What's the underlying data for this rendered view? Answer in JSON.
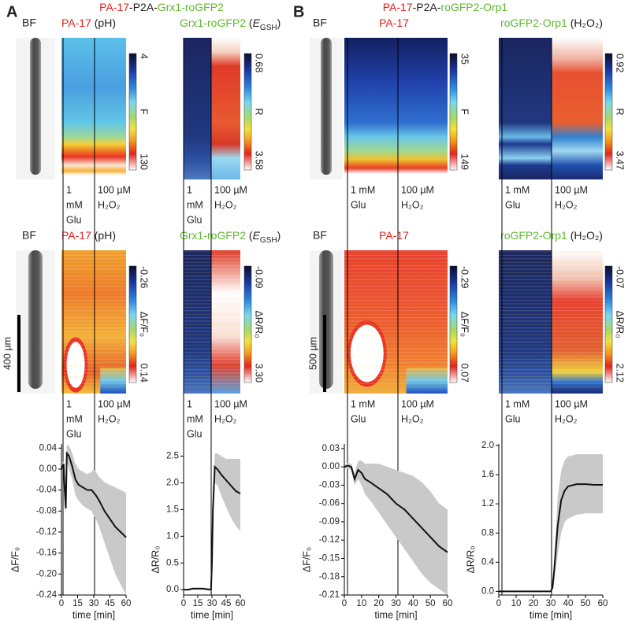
{
  "panels": [
    {
      "letter": "A",
      "construct": [
        {
          "text": "PA-17",
          "color": "#e3201b"
        },
        {
          "text": "-P2A-",
          "color": "#231f20"
        },
        {
          "text": "Grx1-roGFP2",
          "color": "#5fb82f"
        }
      ],
      "rows": [
        {
          "bf": "BF",
          "titles": [
            [
              {
                "text": "PA-17",
                "color": "#e3201b"
              },
              {
                "text": " (pH)",
                "color": "#231f20"
              }
            ],
            [
              {
                "text": "Grx1-roGFP2",
                "color": "#5fb82f"
              },
              {
                "text": " (",
                "color": "#231f20"
              },
              {
                "text": "E",
                "color": "#231f20",
                "style": "italic"
              },
              {
                "text": "GSH",
                "color": "#231f20",
                "style": "sub"
              },
              {
                "text": ")",
                "color": "#231f20"
              }
            ]
          ],
          "colorbars": [
            {
              "top": "4",
              "label": "F",
              "bottom": "130"
            },
            {
              "top": "0.68",
              "label": "R",
              "bottom": "3.58"
            }
          ]
        },
        {
          "bf": "BF",
          "titles": [
            [
              {
                "text": "PA-17",
                "color": "#e3201b"
              },
              {
                "text": " (pH)",
                "color": "#231f20"
              }
            ],
            [
              {
                "text": "Grx1-roGFP2",
                "color": "#5fb82f"
              },
              {
                "text": " (",
                "color": "#231f20"
              },
              {
                "text": "E",
                "color": "#231f20",
                "style": "italic"
              },
              {
                "text": "GSH",
                "color": "#231f20",
                "style": "sub"
              },
              {
                "text": ")",
                "color": "#231f20"
              }
            ]
          ],
          "colorbars": [
            {
              "top": "-0.26",
              "label": "ΔF/F₀",
              "bottom": "0.14"
            },
            {
              "top": "-0.09",
              "label": "ΔR/R₀",
              "bottom": "3.30"
            }
          ]
        }
      ],
      "treatments": [
        [
          "1",
          "mM",
          "Glu"
        ],
        [
          "100 µM",
          "H₂O₂"
        ]
      ],
      "scale_bar": "400 µm"
    },
    {
      "letter": "B",
      "construct": [
        {
          "text": "PA-17",
          "color": "#e3201b"
        },
        {
          "text": "-P2A-",
          "color": "#231f20"
        },
        {
          "text": "roGFP2-Orp1",
          "color": "#5fb82f"
        }
      ],
      "rows": [
        {
          "bf": "BF",
          "titles": [
            [
              {
                "text": "PA-17",
                "color": "#e3201b"
              }
            ],
            [
              {
                "text": "roGFP2-Orp1",
                "color": "#5fb82f"
              },
              {
                "text": " (H₂O₂)",
                "color": "#231f20"
              }
            ]
          ],
          "colorbars": [
            {
              "top": "35",
              "label": "F",
              "bottom": "149"
            },
            {
              "top": "0.92",
              "label": "R",
              "bottom": "3.47"
            }
          ]
        },
        {
          "bf": "BF",
          "titles": [
            [
              {
                "text": "PA-17",
                "color": "#e3201b"
              }
            ],
            [
              {
                "text": "roGFP2-Orp1",
                "color": "#5fb82f"
              },
              {
                "text": " (H₂O₂)",
                "color": "#231f20"
              }
            ]
          ],
          "colorbars": [
            {
              "top": "-0.29",
              "label": "ΔF/F₀",
              "bottom": "0.07"
            },
            {
              "top": "-0.07",
              "label": "ΔR/R₀",
              "bottom": "2.12"
            }
          ]
        }
      ],
      "treatments": [
        [
          "1 mM",
          "Glu"
        ],
        [
          "100 µM",
          "H₂O₂"
        ]
      ],
      "scale_bar": "500 µm"
    }
  ],
  "chart_data": [
    {
      "type": "line",
      "color": "#111111",
      "band_color": "#c9c9c9",
      "x": [
        0,
        1,
        2,
        3,
        4,
        5,
        7,
        10,
        13,
        16,
        20,
        24,
        28,
        30,
        32,
        35,
        40,
        45,
        50,
        55,
        60
      ],
      "values": [
        0.0,
        0.005,
        0.01,
        -0.04,
        -0.075,
        0.03,
        0.025,
        0.005,
        -0.02,
        -0.03,
        -0.035,
        -0.04,
        -0.04,
        -0.045,
        -0.05,
        -0.06,
        -0.08,
        -0.095,
        -0.11,
        -0.12,
        -0.13
      ],
      "band_lower": [
        -0.005,
        0.0,
        0.003,
        -0.05,
        -0.09,
        0.015,
        0.0,
        -0.02,
        -0.05,
        -0.06,
        -0.07,
        -0.075,
        -0.08,
        -0.09,
        -0.095,
        -0.11,
        -0.14,
        -0.17,
        -0.2,
        -0.22,
        -0.24
      ],
      "band_upper": [
        0.005,
        0.01,
        0.017,
        -0.03,
        -0.06,
        0.045,
        0.045,
        0.03,
        0.01,
        0.0,
        -0.005,
        -0.01,
        -0.005,
        0.0,
        -0.005,
        -0.015,
        -0.025,
        -0.03,
        -0.035,
        -0.04,
        -0.045
      ],
      "xlim": [
        0,
        60
      ],
      "xticks": [
        0,
        15,
        30,
        45,
        60
      ],
      "ylim": [
        -0.24,
        0.045
      ],
      "yticks": [
        0.04,
        {
          "value": 0,
          "label": "0.00"
        },
        -0.04,
        -0.08,
        -0.12,
        -0.16,
        {
          "value": -0.2,
          "label": "-0.20"
        },
        -0.24
      ],
      "xlabel": "time [min]",
      "ylabel": "ΔF/F₀"
    },
    {
      "type": "line",
      "color": "#111111",
      "band_color": "#c9c9c9",
      "x": [
        0,
        5,
        10,
        20,
        29,
        30,
        31,
        33,
        36,
        40,
        45,
        50,
        55,
        60
      ],
      "values": [
        0,
        0,
        0.02,
        0.02,
        0,
        0.5,
        1.5,
        2.3,
        2.25,
        2.15,
        2.05,
        1.95,
        1.85,
        1.8
      ],
      "band_lower": [
        0,
        0,
        0,
        0,
        -0.02,
        0.3,
        1.2,
        2.0,
        1.95,
        1.75,
        1.55,
        1.35,
        1.2,
        1.1
      ],
      "band_upper": [
        0,
        0.02,
        0.04,
        0.04,
        0.02,
        0.7,
        1.8,
        2.55,
        2.55,
        2.5,
        2.45,
        2.45,
        2.45,
        2.45
      ],
      "xlim": [
        0,
        60
      ],
      "xticks": [
        0,
        15,
        30,
        45,
        60
      ],
      "ylim": [
        -0.1,
        2.7
      ],
      "yticks": [
        {
          "value": 0,
          "label": "0.0"
        },
        0.5,
        {
          "value": 1,
          "label": "1.0"
        },
        1.5,
        {
          "value": 2,
          "label": "2.0"
        },
        2.5
      ],
      "xlabel": "time [min]",
      "ylabel": "ΔR/R₀"
    },
    {
      "type": "line",
      "color": "#111111",
      "band_color": "#c9c9c9",
      "x": [
        0,
        2,
        4,
        6,
        8,
        10,
        12,
        15,
        20,
        25,
        30,
        35,
        40,
        45,
        50,
        55,
        60
      ],
      "values": [
        0,
        0.002,
        0,
        -0.02,
        -0.005,
        -0.01,
        -0.02,
        -0.025,
        -0.035,
        -0.045,
        -0.06,
        -0.07,
        -0.085,
        -0.1,
        -0.115,
        -0.13,
        -0.14
      ],
      "band_lower": [
        -0.002,
        -0.003,
        -0.005,
        -0.03,
        -0.02,
        -0.03,
        -0.045,
        -0.055,
        -0.075,
        -0.095,
        -0.115,
        -0.135,
        -0.155,
        -0.175,
        -0.19,
        -0.2,
        -0.21
      ],
      "band_upper": [
        0.002,
        0.007,
        0.005,
        -0.01,
        0.01,
        0.01,
        0.005,
        0.005,
        0.005,
        0.0,
        -0.005,
        -0.01,
        -0.015,
        -0.025,
        -0.04,
        -0.06,
        -0.07
      ],
      "xlim": [
        0,
        60
      ],
      "xticks": [
        0,
        10,
        20,
        30,
        40,
        50,
        60
      ],
      "ylim": [
        -0.21,
        0.035
      ],
      "yticks": [
        0.03,
        {
          "value": 0,
          "label": "0.00"
        },
        -0.03,
        -0.06,
        -0.09,
        -0.12,
        -0.15,
        -0.18,
        -0.21
      ],
      "xlabel": "time [min]",
      "ylabel": "ΔF/F₀"
    },
    {
      "type": "line",
      "color": "#111111",
      "band_color": "#c9c9c9",
      "x": [
        0,
        10,
        20,
        29,
        30,
        31,
        32,
        34,
        36,
        38,
        40,
        45,
        50,
        55,
        60
      ],
      "values": [
        0,
        0,
        0,
        0,
        0,
        0.05,
        0.3,
        0.9,
        1.25,
        1.38,
        1.44,
        1.47,
        1.47,
        1.46,
        1.46
      ],
      "band_lower": [
        0,
        0,
        0,
        0,
        0,
        0.02,
        0.15,
        0.5,
        0.8,
        0.95,
        1.0,
        1.05,
        1.07,
        1.07,
        1.07
      ],
      "band_upper": [
        0,
        0,
        0,
        0,
        0,
        0.08,
        0.45,
        1.3,
        1.65,
        1.8,
        1.85,
        1.88,
        1.88,
        1.88,
        1.88
      ],
      "xlim": [
        0,
        60
      ],
      "xticks": [
        0,
        10,
        20,
        30,
        40,
        50,
        60
      ],
      "ylim": [
        -0.05,
        2.0
      ],
      "yticks": [
        {
          "value": 0,
          "label": "0.0"
        },
        0.4,
        0.8,
        1.2,
        1.6,
        {
          "value": 2,
          "label": "2.0"
        }
      ],
      "xlabel": "time [min]",
      "ylabel": "ΔR/R₀"
    }
  ]
}
